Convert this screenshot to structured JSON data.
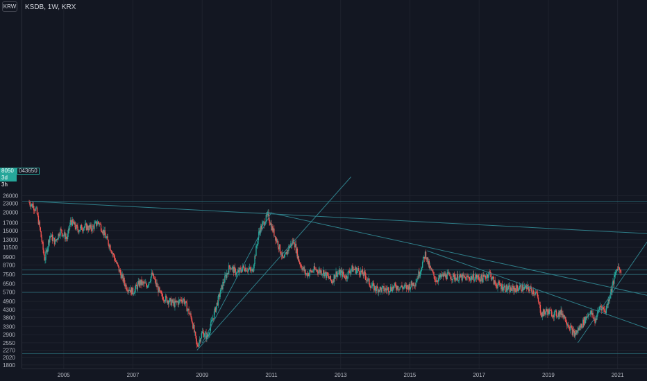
{
  "header": {
    "currency_button": "KRW",
    "symbol_line": "KSDB, 1W, KRX"
  },
  "price_badge": {
    "last_price": "8050",
    "symbol": "043650",
    "countdown": "3d 3h"
  },
  "colors": {
    "background": "#131722",
    "grid": "#1e222d",
    "up": "#26a69a",
    "down": "#ef5350",
    "trendline": "#2f7f8a",
    "axis_text": "#b2b5be"
  },
  "chart_data": {
    "type": "candlestick",
    "y_scale": "log",
    "yticks": [
      1800,
      2020,
      2270,
      2550,
      2900,
      3300,
      3800,
      4300,
      4900,
      5700,
      6500,
      7500,
      8700,
      9900,
      11500,
      13000,
      15000,
      17000,
      20000,
      23000,
      26000
    ],
    "ytick_labels": [
      "1800",
      "2020",
      "2270",
      "2550",
      "2900",
      "3300",
      "3800",
      "4300",
      "4900",
      "5700",
      "6500",
      "7500",
      "8700",
      "9900",
      "11500",
      "13000",
      "15000",
      "17000",
      "20000",
      "23000",
      "26000"
    ],
    "xticks": [
      "2005",
      "2007",
      "2009",
      "2011",
      "2013",
      "2015",
      "2017",
      "2019",
      "2021"
    ],
    "xlim": [
      2003.8,
      2021.85
    ],
    "ylim": [
      1700,
      29000
    ],
    "last_price": 8050,
    "price_path": [
      [
        2004.0,
        23500
      ],
      [
        2004.2,
        21000
      ],
      [
        2004.3,
        16000
      ],
      [
        2004.45,
        9400
      ],
      [
        2004.6,
        14000
      ],
      [
        2004.75,
        12500
      ],
      [
        2004.9,
        15000
      ],
      [
        2005.1,
        13200
      ],
      [
        2005.2,
        17500
      ],
      [
        2005.4,
        15200
      ],
      [
        2005.6,
        16000
      ],
      [
        2005.8,
        15500
      ],
      [
        2006.0,
        17200
      ],
      [
        2006.1,
        15500
      ],
      [
        2006.35,
        11500
      ],
      [
        2006.6,
        8000
      ],
      [
        2006.8,
        6200
      ],
      [
        2007.0,
        5700
      ],
      [
        2007.2,
        6600
      ],
      [
        2007.4,
        6300
      ],
      [
        2007.55,
        7500
      ],
      [
        2007.8,
        5400
      ],
      [
        2008.0,
        5000
      ],
      [
        2008.2,
        4700
      ],
      [
        2008.45,
        5100
      ],
      [
        2008.7,
        3700
      ],
      [
        2008.85,
        2400
      ],
      [
        2009.0,
        3000
      ],
      [
        2009.15,
        2800
      ],
      [
        2009.4,
        4500
      ],
      [
        2009.6,
        6500
      ],
      [
        2009.8,
        8600
      ],
      [
        2010.0,
        7600
      ],
      [
        2010.2,
        8400
      ],
      [
        2010.45,
        7900
      ],
      [
        2010.65,
        15000
      ],
      [
        2010.75,
        16500
      ],
      [
        2010.9,
        19200
      ],
      [
        2011.0,
        16000
      ],
      [
        2011.2,
        12000
      ],
      [
        2011.35,
        9300
      ],
      [
        2011.5,
        11500
      ],
      [
        2011.65,
        12800
      ],
      [
        2011.8,
        9200
      ],
      [
        2012.0,
        7500
      ],
      [
        2012.25,
        8100
      ],
      [
        2012.5,
        7800
      ],
      [
        2012.75,
        6700
      ],
      [
        2012.85,
        7600
      ],
      [
        2013.0,
        7700
      ],
      [
        2013.15,
        7200
      ],
      [
        2013.3,
        8200
      ],
      [
        2013.5,
        8000
      ],
      [
        2013.7,
        7400
      ],
      [
        2013.85,
        6400
      ],
      [
        2014.0,
        6000
      ],
      [
        2014.3,
        5900
      ],
      [
        2014.6,
        6200
      ],
      [
        2014.9,
        6100
      ],
      [
        2015.0,
        6300
      ],
      [
        2015.15,
        6600
      ],
      [
        2015.3,
        8000
      ],
      [
        2015.45,
        10500
      ],
      [
        2015.55,
        8500
      ],
      [
        2015.75,
        6900
      ],
      [
        2016.0,
        7400
      ],
      [
        2016.3,
        7200
      ],
      [
        2016.6,
        7100
      ],
      [
        2016.9,
        7200
      ],
      [
        2017.1,
        7000
      ],
      [
        2017.3,
        7700
      ],
      [
        2017.45,
        6500
      ],
      [
        2017.65,
        6200
      ],
      [
        2017.9,
        5900
      ],
      [
        2018.2,
        6100
      ],
      [
        2018.45,
        6000
      ],
      [
        2018.65,
        5600
      ],
      [
        2018.8,
        4000
      ],
      [
        2018.95,
        4200
      ],
      [
        2019.2,
        4000
      ],
      [
        2019.4,
        4100
      ],
      [
        2019.55,
        3500
      ],
      [
        2019.75,
        2900
      ],
      [
        2019.85,
        3100
      ],
      [
        2020.0,
        3500
      ],
      [
        2020.2,
        4200
      ],
      [
        2020.35,
        3600
      ],
      [
        2020.5,
        4600
      ],
      [
        2020.65,
        4200
      ],
      [
        2020.8,
        5700
      ],
      [
        2021.0,
        8500
      ],
      [
        2021.1,
        8050
      ]
    ],
    "trendlines": [
      {
        "from": [
          2004.0,
          23800
        ],
        "to": [
          2021.85,
          14300
        ]
      },
      {
        "from": [
          2010.9,
          20000
        ],
        "to": [
          2021.85,
          5400
        ]
      },
      {
        "from": [
          2015.5,
          10900
        ],
        "to": [
          2021.85,
          3200
        ]
      },
      {
        "from": [
          2008.85,
          2270
        ],
        "to": [
          2013.3,
          35000
        ]
      },
      {
        "from": [
          2009.0,
          2550
        ],
        "to": [
          2011.0,
          20000
        ]
      },
      {
        "from": [
          2019.85,
          2550
        ],
        "to": [
          2021.85,
          12500
        ]
      }
    ],
    "horizontal_lines": [
      23800,
      8050,
      7500,
      5650,
      2150
    ]
  }
}
